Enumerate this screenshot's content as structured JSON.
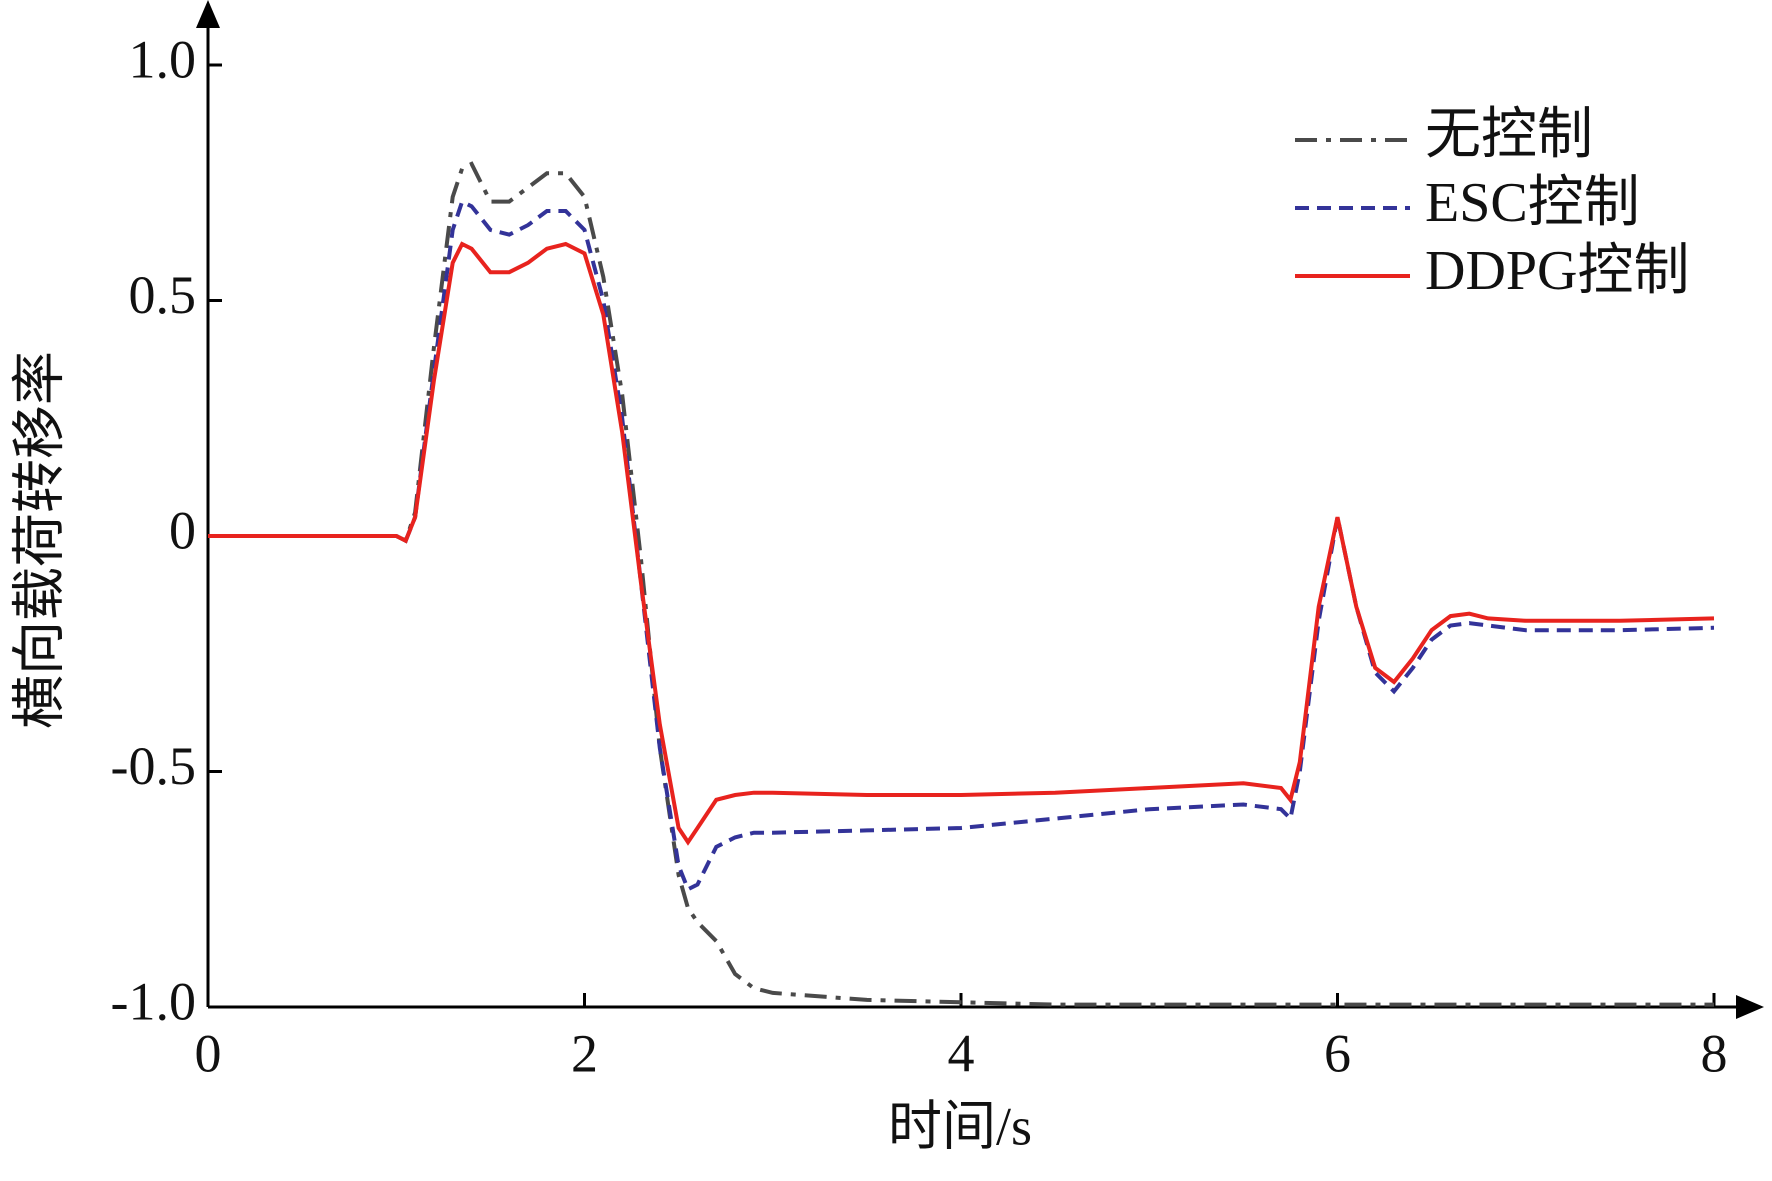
{
  "chart_data": {
    "type": "line",
    "x_label": "时间/s",
    "y_label": "横向载荷转移率",
    "x": [
      0,
      0.5,
      1.0,
      1.05,
      1.1,
      1.2,
      1.3,
      1.35,
      1.4,
      1.5,
      1.6,
      1.7,
      1.8,
      1.9,
      2.0,
      2.1,
      2.2,
      2.3,
      2.4,
      2.5,
      2.55,
      2.6,
      2.7,
      2.8,
      2.9,
      3.0,
      3.5,
      4.0,
      4.5,
      5.0,
      5.5,
      5.7,
      5.75,
      5.8,
      5.9,
      6.0,
      6.1,
      6.2,
      6.3,
      6.4,
      6.5,
      6.6,
      6.7,
      6.8,
      7.0,
      7.5,
      8.0
    ],
    "series": [
      {
        "name": "无控制",
        "color": "#4a4a4a",
        "dash": "dashdot",
        "values": [
          0,
          0,
          0,
          -0.01,
          0.05,
          0.4,
          0.72,
          0.78,
          0.79,
          0.71,
          0.71,
          0.74,
          0.77,
          0.77,
          0.72,
          0.55,
          0.3,
          -0.05,
          -0.45,
          -0.72,
          -0.79,
          -0.82,
          -0.86,
          -0.93,
          -0.96,
          -0.97,
          -0.985,
          -0.99,
          -0.995,
          -0.995,
          -0.995,
          -0.995,
          -0.995,
          -0.995,
          -0.995,
          -0.995,
          -0.995,
          -0.995,
          -0.995,
          -0.995,
          -0.995,
          -0.995,
          -0.995,
          -0.995,
          -0.995,
          -0.995,
          -0.995
        ]
      },
      {
        "name": "ESC控制",
        "color": "#333399",
        "dash": "dashed",
        "values": [
          0,
          0,
          0,
          -0.01,
          0.04,
          0.35,
          0.65,
          0.71,
          0.7,
          0.65,
          0.64,
          0.66,
          0.69,
          0.69,
          0.65,
          0.5,
          0.25,
          -0.1,
          -0.45,
          -0.7,
          -0.75,
          -0.74,
          -0.66,
          -0.64,
          -0.63,
          -0.63,
          -0.625,
          -0.62,
          -0.6,
          -0.58,
          -0.57,
          -0.58,
          -0.6,
          -0.5,
          -0.18,
          0.04,
          -0.15,
          -0.29,
          -0.33,
          -0.28,
          -0.22,
          -0.19,
          -0.185,
          -0.19,
          -0.2,
          -0.2,
          -0.195
        ]
      },
      {
        "name": "DDPG控制",
        "color": "#e8231e",
        "dash": "solid",
        "values": [
          0,
          0,
          0,
          -0.01,
          0.04,
          0.33,
          0.58,
          0.62,
          0.61,
          0.56,
          0.56,
          0.58,
          0.61,
          0.62,
          0.6,
          0.47,
          0.22,
          -0.1,
          -0.4,
          -0.62,
          -0.65,
          -0.62,
          -0.56,
          -0.55,
          -0.545,
          -0.545,
          -0.55,
          -0.55,
          -0.545,
          -0.535,
          -0.525,
          -0.535,
          -0.56,
          -0.48,
          -0.15,
          0.04,
          -0.15,
          -0.28,
          -0.31,
          -0.26,
          -0.2,
          -0.17,
          -0.165,
          -0.175,
          -0.18,
          -0.18,
          -0.175
        ]
      }
    ],
    "xlim": [
      0,
      8
    ],
    "xticks": [
      0,
      2,
      4,
      6,
      8
    ],
    "ylim": [
      -1,
      1
    ],
    "yticks": [
      {
        "value": -1,
        "label": "-1.0"
      },
      -0.5,
      0,
      0.5,
      {
        "value": 1,
        "label": "1.0"
      }
    ],
    "legend": "upper right",
    "grid": false
  }
}
